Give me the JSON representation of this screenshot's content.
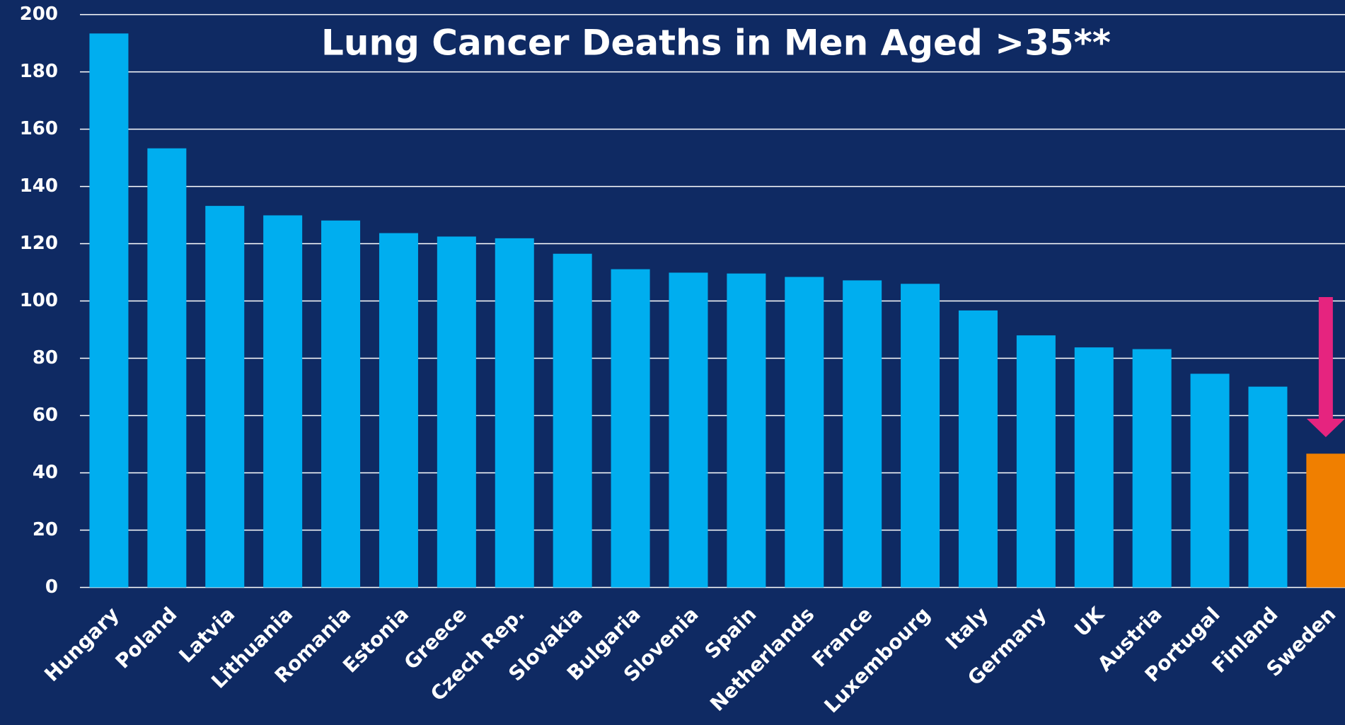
{
  "chart_data": {
    "type": "bar",
    "title": "Lung Cancer Deaths in Men Aged >35**",
    "categories": [
      "Hungary",
      "Poland",
      "Latvia",
      "Lithuania",
      "Romania",
      "Estonia",
      "Greece",
      "Czech Rep.",
      "Slovakia",
      "Bulgaria",
      "Slovenia",
      "Spain",
      "Netherlands",
      "France",
      "Luxembourg",
      "Italy",
      "Germany",
      "UK",
      "Austria",
      "Portugal",
      "Finland",
      "Sweden"
    ],
    "values": [
      193.4,
      153.3,
      133.2,
      129.9,
      128.1,
      123.7,
      122.5,
      121.9,
      116.5,
      111.1,
      109.9,
      109.6,
      108.4,
      107.2,
      106,
      96.7,
      88,
      83.8,
      83.2,
      74.6,
      70.1,
      46.7
    ],
    "colors": [
      "#00aeef",
      "#00aeef",
      "#00aeef",
      "#00aeef",
      "#00aeef",
      "#00aeef",
      "#00aeef",
      "#00aeef",
      "#00aeef",
      "#00aeef",
      "#00aeef",
      "#00aeef",
      "#00aeef",
      "#00aeef",
      "#00aeef",
      "#00aeef",
      "#00aeef",
      "#00aeef",
      "#00aeef",
      "#00aeef",
      "#00aeef",
      "#f07f00"
    ],
    "ylim": [
      0,
      200
    ],
    "yticks": [
      0,
      20,
      40,
      60,
      80,
      100,
      120,
      140,
      160,
      180,
      200
    ],
    "grid": true
  }
}
